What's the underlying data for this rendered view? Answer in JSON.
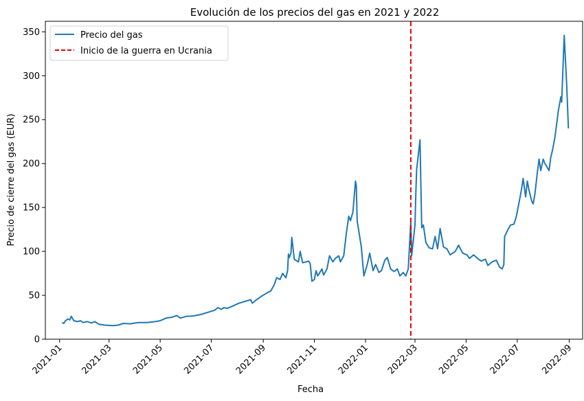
{
  "chart_data": {
    "type": "line",
    "title": "Evolución de los precios del gas en 2021 y 2022",
    "xlabel": "Fecha",
    "ylabel": "Precio de cierre del gas (EUR)",
    "ylim": [
      0,
      362
    ],
    "y_ticks": [
      0,
      50,
      100,
      150,
      200,
      250,
      300,
      350
    ],
    "x_range": [
      "2020-12-15",
      "2022-09-17"
    ],
    "x_ticks": [
      "2021-01",
      "2021-03",
      "2021-05",
      "2021-07",
      "2021-09",
      "2021-11",
      "2022-01",
      "2022-03",
      "2022-05",
      "2022-07",
      "2022-09"
    ],
    "grid": false,
    "legend_position": "upper-left",
    "series": [
      {
        "name": "Precio del gas",
        "color": "#1f77b4",
        "points": [
          [
            "2021-01-04",
            19
          ],
          [
            "2021-01-06",
            18
          ],
          [
            "2021-01-08",
            21
          ],
          [
            "2021-01-11",
            23
          ],
          [
            "2021-01-13",
            22
          ],
          [
            "2021-01-15",
            26
          ],
          [
            "2021-01-18",
            21
          ],
          [
            "2021-01-22",
            20
          ],
          [
            "2021-01-26",
            21
          ],
          [
            "2021-01-29",
            19
          ],
          [
            "2021-02-03",
            20
          ],
          [
            "2021-02-08",
            18.5
          ],
          [
            "2021-02-12",
            20
          ],
          [
            "2021-02-17",
            17
          ],
          [
            "2021-02-24",
            16
          ],
          [
            "2021-03-05",
            15.5
          ],
          [
            "2021-03-12",
            16
          ],
          [
            "2021-03-18",
            18
          ],
          [
            "2021-03-26",
            17.5
          ],
          [
            "2021-04-05",
            19
          ],
          [
            "2021-04-15",
            19
          ],
          [
            "2021-04-25",
            20
          ],
          [
            "2021-05-01",
            21
          ],
          [
            "2021-05-08",
            24
          ],
          [
            "2021-05-15",
            25
          ],
          [
            "2021-05-21",
            27
          ],
          [
            "2021-05-25",
            24
          ],
          [
            "2021-06-01",
            26
          ],
          [
            "2021-06-10",
            26.5
          ],
          [
            "2021-06-20",
            28.5
          ],
          [
            "2021-06-28",
            31
          ],
          [
            "2021-07-05",
            33
          ],
          [
            "2021-07-09",
            36
          ],
          [
            "2021-07-13",
            34
          ],
          [
            "2021-07-16",
            36
          ],
          [
            "2021-07-20",
            35
          ],
          [
            "2021-07-27",
            38
          ],
          [
            "2021-08-03",
            41
          ],
          [
            "2021-08-10",
            43
          ],
          [
            "2021-08-17",
            45
          ],
          [
            "2021-08-19",
            41
          ],
          [
            "2021-08-24",
            45
          ],
          [
            "2021-08-30",
            49
          ],
          [
            "2021-09-06",
            53
          ],
          [
            "2021-09-10",
            55
          ],
          [
            "2021-09-14",
            62
          ],
          [
            "2021-09-17",
            70
          ],
          [
            "2021-09-21",
            68
          ],
          [
            "2021-09-24",
            75
          ],
          [
            "2021-09-28",
            70
          ],
          [
            "2021-09-30",
            78
          ],
          [
            "2021-10-01",
            97
          ],
          [
            "2021-10-02",
            93
          ],
          [
            "2021-10-04",
            98
          ],
          [
            "2021-10-05",
            116
          ],
          [
            "2021-10-06",
            108
          ],
          [
            "2021-10-08",
            91
          ],
          [
            "2021-10-13",
            88
          ],
          [
            "2021-10-15",
            100
          ],
          [
            "2021-10-18",
            87
          ],
          [
            "2021-10-22",
            88
          ],
          [
            "2021-10-25",
            89
          ],
          [
            "2021-10-27",
            86
          ],
          [
            "2021-10-29",
            66
          ],
          [
            "2021-11-01",
            68
          ],
          [
            "2021-11-03",
            78
          ],
          [
            "2021-11-05",
            72
          ],
          [
            "2021-11-10",
            80
          ],
          [
            "2021-11-12",
            73
          ],
          [
            "2021-11-16",
            80
          ],
          [
            "2021-11-19",
            95
          ],
          [
            "2021-11-23",
            88
          ],
          [
            "2021-11-26",
            92
          ],
          [
            "2021-11-30",
            95
          ],
          [
            "2021-12-02",
            88
          ],
          [
            "2021-12-06",
            95
          ],
          [
            "2021-12-09",
            120
          ],
          [
            "2021-12-12",
            140
          ],
          [
            "2021-12-14",
            135
          ],
          [
            "2021-12-17",
            145
          ],
          [
            "2021-12-20",
            180
          ],
          [
            "2021-12-21",
            175
          ],
          [
            "2021-12-22",
            135
          ],
          [
            "2021-12-27",
            105
          ],
          [
            "2021-12-30",
            72
          ],
          [
            "2022-01-03",
            85
          ],
          [
            "2022-01-06",
            98
          ],
          [
            "2022-01-10",
            78
          ],
          [
            "2022-01-13",
            85
          ],
          [
            "2022-01-17",
            76
          ],
          [
            "2022-01-20",
            78
          ],
          [
            "2022-01-24",
            90
          ],
          [
            "2022-01-27",
            93
          ],
          [
            "2022-01-31",
            80
          ],
          [
            "2022-02-04",
            77
          ],
          [
            "2022-02-08",
            80
          ],
          [
            "2022-02-11",
            72
          ],
          [
            "2022-02-15",
            76
          ],
          [
            "2022-02-18",
            72
          ],
          [
            "2022-02-21",
            80
          ],
          [
            "2022-02-24",
            134
          ],
          [
            "2022-02-25",
            95
          ],
          [
            "2022-03-01",
            130
          ],
          [
            "2022-03-02",
            165
          ],
          [
            "2022-03-03",
            193
          ],
          [
            "2022-03-07",
            227
          ],
          [
            "2022-03-09",
            127
          ],
          [
            "2022-03-11",
            130
          ],
          [
            "2022-03-14",
            110
          ],
          [
            "2022-03-18",
            104
          ],
          [
            "2022-03-22",
            103
          ],
          [
            "2022-03-25",
            117
          ],
          [
            "2022-03-28",
            103
          ],
          [
            "2022-03-31",
            126
          ],
          [
            "2022-04-04",
            105
          ],
          [
            "2022-04-08",
            103
          ],
          [
            "2022-04-12",
            96
          ],
          [
            "2022-04-18",
            100
          ],
          [
            "2022-04-22",
            107
          ],
          [
            "2022-04-27",
            98
          ],
          [
            "2022-05-02",
            96
          ],
          [
            "2022-05-05",
            92
          ],
          [
            "2022-05-10",
            96
          ],
          [
            "2022-05-16",
            91
          ],
          [
            "2022-05-19",
            89
          ],
          [
            "2022-05-24",
            91
          ],
          [
            "2022-05-27",
            84
          ],
          [
            "2022-06-01",
            88
          ],
          [
            "2022-06-06",
            90
          ],
          [
            "2022-06-10",
            82
          ],
          [
            "2022-06-13",
            80
          ],
          [
            "2022-06-15",
            85
          ],
          [
            "2022-06-16",
            117
          ],
          [
            "2022-06-20",
            125
          ],
          [
            "2022-06-23",
            130
          ],
          [
            "2022-06-27",
            131
          ],
          [
            "2022-06-30",
            140
          ],
          [
            "2022-07-04",
            160
          ],
          [
            "2022-07-06",
            170
          ],
          [
            "2022-07-08",
            183
          ],
          [
            "2022-07-11",
            162
          ],
          [
            "2022-07-13",
            180
          ],
          [
            "2022-07-15",
            170
          ],
          [
            "2022-07-18",
            158
          ],
          [
            "2022-07-20",
            154
          ],
          [
            "2022-07-22",
            165
          ],
          [
            "2022-07-25",
            190
          ],
          [
            "2022-07-27",
            205
          ],
          [
            "2022-07-29",
            192
          ],
          [
            "2022-08-01",
            205
          ],
          [
            "2022-08-03",
            200
          ],
          [
            "2022-08-05",
            197
          ],
          [
            "2022-08-08",
            192
          ],
          [
            "2022-08-10",
            207
          ],
          [
            "2022-08-12",
            215
          ],
          [
            "2022-08-15",
            230
          ],
          [
            "2022-08-17",
            245
          ],
          [
            "2022-08-19",
            260
          ],
          [
            "2022-08-22",
            276
          ],
          [
            "2022-08-23",
            270
          ],
          [
            "2022-08-26",
            346
          ],
          [
            "2022-08-29",
            290
          ],
          [
            "2022-08-31",
            240
          ]
        ]
      },
      {
        "name": "Inicio de la guerra en Ucrania",
        "color": "#e00000",
        "style": "dashed",
        "vertical_at": "2022-02-24"
      }
    ]
  }
}
